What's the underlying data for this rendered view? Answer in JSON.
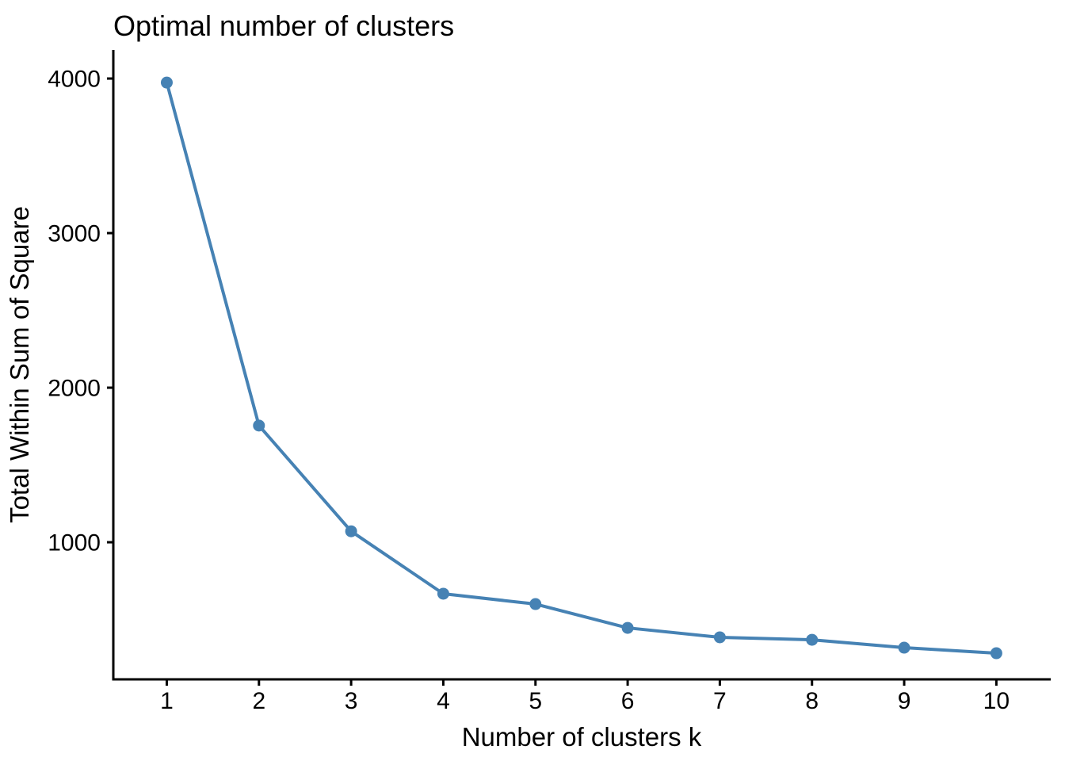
{
  "chart_data": {
    "type": "line",
    "title": "Optimal number of clusters",
    "xlabel": "Number of clusters k",
    "ylabel": "Total Within Sum of Square",
    "x": [
      1,
      2,
      3,
      4,
      5,
      6,
      7,
      8,
      9,
      10
    ],
    "values": [
      3974,
      1755,
      1071,
      667,
      600,
      446,
      385,
      369,
      318,
      282
    ],
    "x_ticks": [
      "1",
      "2",
      "3",
      "4",
      "5",
      "6",
      "7",
      "8",
      "9",
      "10"
    ],
    "y_ticks": [
      1000,
      2000,
      3000,
      4000
    ],
    "y_tick_labels": [
      "1000",
      "2000",
      "3000",
      "4000"
    ],
    "xlim": [
      0.42,
      10.59
    ],
    "ylim": [
      113,
      4185
    ],
    "grid": false,
    "legend": "none",
    "title_align": "left",
    "colors": {
      "line": "#4682B4",
      "point": "#4682B4",
      "axis": "#000000",
      "text": "#000000",
      "background": "#FFFFFF"
    },
    "marker": "circle"
  }
}
